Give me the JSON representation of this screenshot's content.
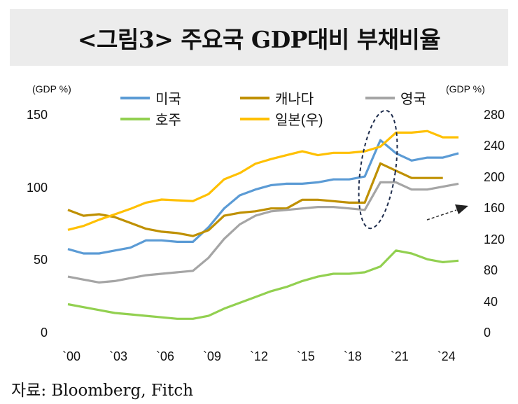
{
  "title": "<그림3> 주요국 GDP대비 부채비율",
  "source": "자료: Bloomberg, Fitch",
  "chart_data": {
    "type": "line",
    "left_axis_unit": "(GDP %)",
    "right_axis_unit": "(GDP %)",
    "left_ylim": [
      0,
      150
    ],
    "right_ylim": [
      0,
      280
    ],
    "left_ticks": [
      "150",
      "100",
      "50",
      "0"
    ],
    "right_ticks": [
      "280",
      "240",
      "200",
      "160",
      "120",
      "80",
      "40",
      "0"
    ],
    "x_ticks": [
      "`00",
      "`03",
      "`06",
      "`09",
      "`12",
      "`15",
      "`18",
      "`21",
      "`24"
    ],
    "x": [
      2000,
      2001,
      2002,
      2003,
      2004,
      2005,
      2006,
      2007,
      2008,
      2009,
      2010,
      2011,
      2012,
      2013,
      2014,
      2015,
      2016,
      2017,
      2018,
      2019,
      2020,
      2021,
      2022,
      2023,
      2024,
      2025
    ],
    "series": [
      {
        "name": "미국",
        "axis": "left",
        "color": "#5b9bd5",
        "values": [
          58,
          55,
          55,
          57,
          59,
          64,
          64,
          63,
          63,
          73,
          86,
          95,
          99,
          102,
          103,
          103,
          104,
          106,
          106,
          108,
          133,
          124,
          119,
          121,
          121,
          124
        ]
      },
      {
        "name": "캐나다",
        "axis": "left",
        "color": "#bf9000",
        "values": [
          85,
          81,
          82,
          80,
          76,
          72,
          70,
          69,
          67,
          71,
          81,
          83,
          84,
          86,
          86,
          92,
          92,
          91,
          90,
          90,
          117,
          112,
          107,
          107,
          107,
          null
        ]
      },
      {
        "name": "영국",
        "axis": "left",
        "color": "#a5a5a5",
        "values": [
          39,
          37,
          35,
          36,
          38,
          40,
          41,
          42,
          43,
          52,
          65,
          75,
          81,
          84,
          85,
          86,
          87,
          87,
          86,
          85,
          104,
          104,
          99,
          99,
          101,
          103
        ]
      },
      {
        "name": "호주",
        "axis": "left",
        "color": "#92d050",
        "values": [
          20,
          18,
          16,
          14,
          13,
          12,
          11,
          10,
          10,
          12,
          17,
          21,
          25,
          29,
          32,
          36,
          39,
          41,
          41,
          42,
          46,
          57,
          55,
          51,
          49,
          50
        ]
      },
      {
        "name": "일본(우)",
        "axis": "right",
        "color": "#ffc000",
        "values": [
          133,
          138,
          146,
          153,
          160,
          168,
          172,
          171,
          170,
          179,
          198,
          206,
          218,
          224,
          229,
          234,
          229,
          232,
          232,
          234,
          240,
          258,
          258,
          260,
          252,
          252
        ]
      }
    ],
    "annotations": [
      "dashed-ellipse-around-2020-2021",
      "dashed-arrow-up-right"
    ]
  }
}
